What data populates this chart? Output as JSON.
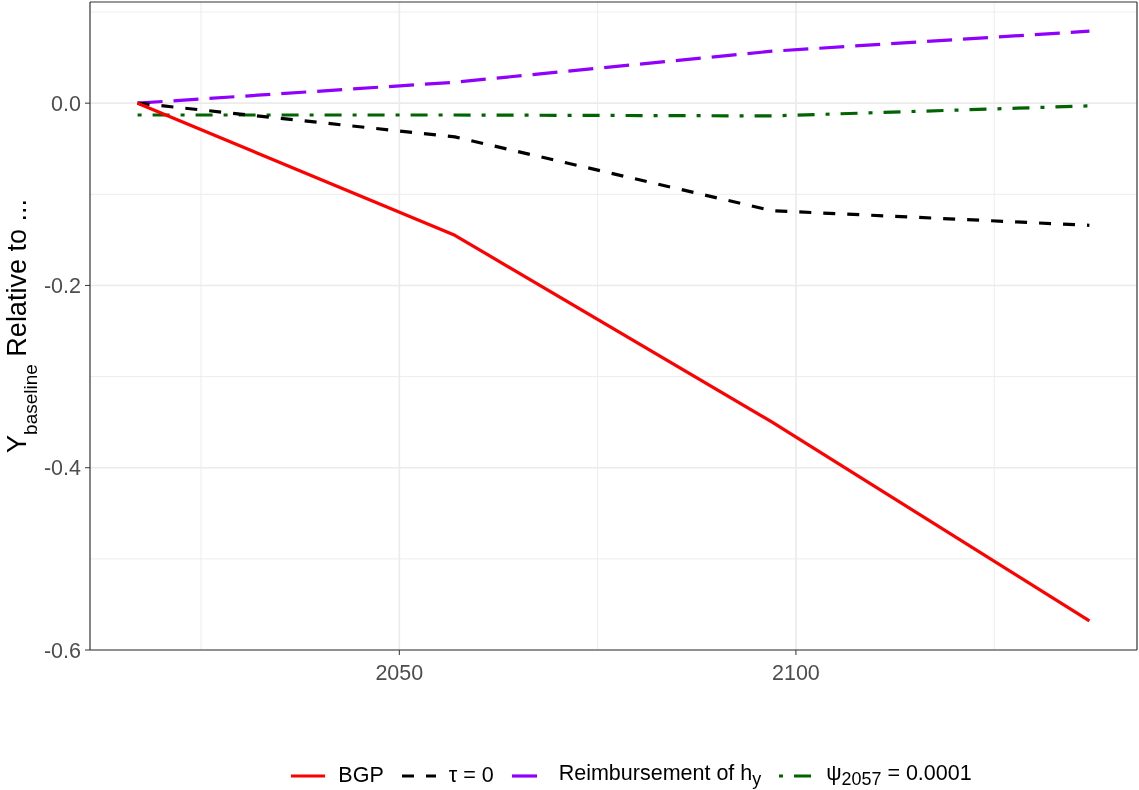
{
  "chart_data": {
    "type": "line",
    "ylabel": "Y$_{baseline}$ Relative to ...",
    "x": [
      2017,
      2057,
      2097,
      2137
    ],
    "series": [
      {
        "name": "BGP",
        "color": "#ff0000",
        "line_style": "solid",
        "values": [
          0,
          -0.145,
          -0.35,
          -0.568
        ]
      },
      {
        "name": "τ = 0",
        "color": "#000000",
        "line_style": "dashed",
        "values": [
          0,
          -0.037,
          -0.118,
          -0.134
        ]
      },
      {
        "name": "Reimbursement of h$_{y}$",
        "color": "#9000ff",
        "line_style": "longdash",
        "values": [
          0,
          0.023,
          0.057,
          0.079
        ]
      },
      {
        "name": "ψ$_{2057}$ = 0.0001",
        "color": "#006400",
        "line_style": "dashdot",
        "values": [
          -0.013,
          -0.013,
          -0.014,
          -0.003
        ]
      }
    ],
    "xlim": [
      2011,
      2143
    ],
    "xticks": [
      2050,
      2100
    ],
    "ylim": [
      -0.6,
      0.111
    ],
    "yticks": [
      -0.6,
      -0.4,
      -0.2,
      {
        "value": 0,
        "label": "0.0"
      }
    ],
    "grid": true,
    "legend": "bottom"
  }
}
